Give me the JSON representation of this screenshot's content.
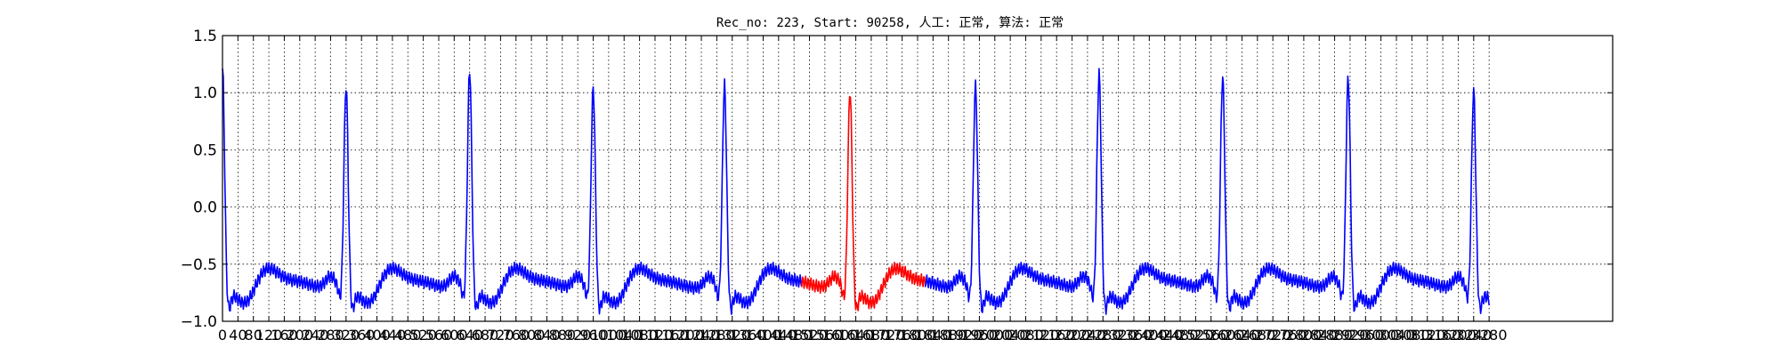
{
  "chart_data": {
    "type": "line",
    "title": "Rec_no: 223, Start: 90258, 人工: 正常, 算法: 正常",
    "xlabel": "",
    "ylabel": "",
    "xlim": [
      0,
      3600
    ],
    "ylim": [
      -1.0,
      1.5
    ],
    "grid": true,
    "yticks": [
      1.5,
      1.0,
      0.5,
      0.0,
      -0.5,
      -1.0
    ],
    "ytick_labels": [
      "1.5",
      "1.0",
      "0.5",
      "0.0",
      "−0.5",
      "−1.0"
    ],
    "xtick_step": 40,
    "xtick_max": 3280,
    "x_end": 3280,
    "colors": {
      "normal": "#0000ff",
      "highlight": "#ff0000"
    },
    "highlight_range": [
      1500,
      1820
    ],
    "beats": [
      {
        "r": 0,
        "amp": 1.3
      },
      {
        "r": 320,
        "amp": 1.15
      },
      {
        "r": 640,
        "amp": 1.29
      },
      {
        "r": 960,
        "amp": 1.13
      },
      {
        "r": 1300,
        "amp": 1.15
      },
      {
        "r": 1625,
        "amp": 1.11
      },
      {
        "r": 1950,
        "amp": 1.14
      },
      {
        "r": 2270,
        "amp": 1.25
      },
      {
        "r": 2590,
        "amp": 1.23
      },
      {
        "r": 2915,
        "amp": 1.22
      },
      {
        "r": 3240,
        "amp": 1.1
      }
    ]
  }
}
